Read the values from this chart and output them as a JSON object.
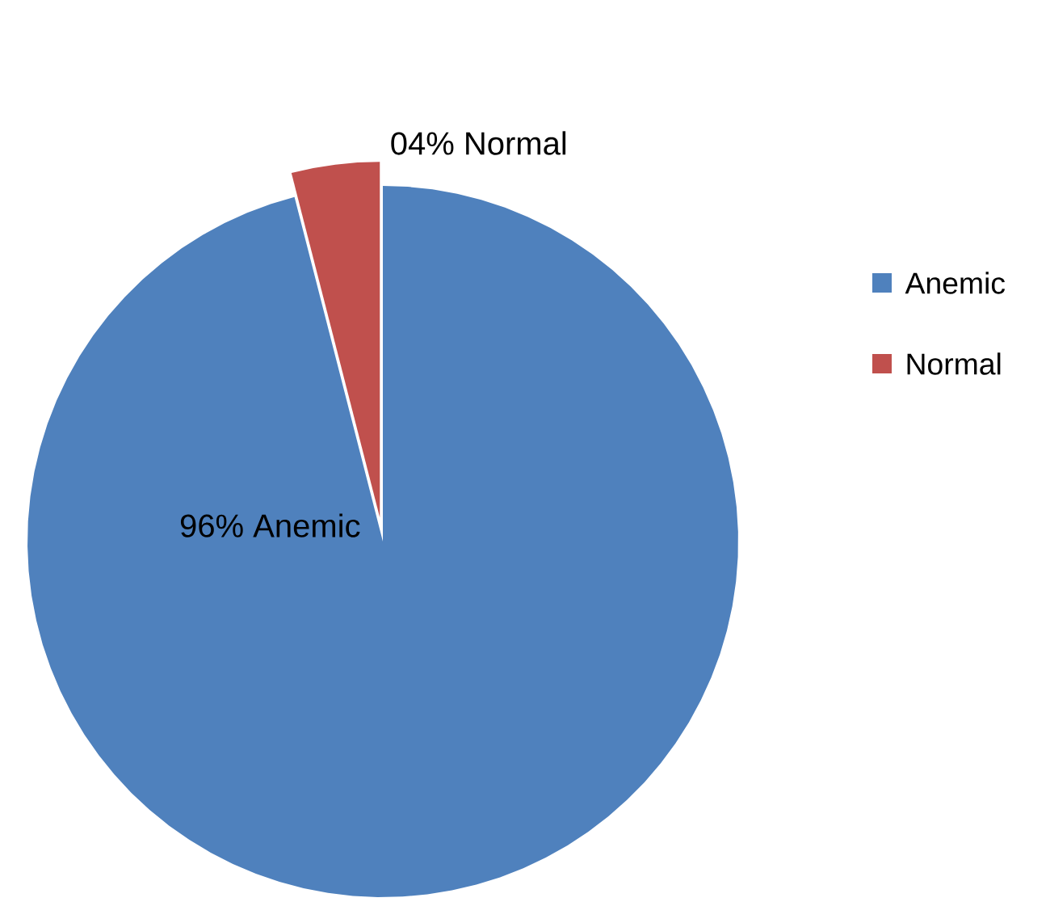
{
  "chart_data": {
    "type": "pie",
    "categories": [
      "Anemic",
      "Normal"
    ],
    "values": [
      96,
      4
    ],
    "colors": [
      "#4f81bd",
      "#c0504d"
    ],
    "value_labels": [
      "96% Anemic",
      "04% Normal"
    ],
    "legend": "right"
  }
}
